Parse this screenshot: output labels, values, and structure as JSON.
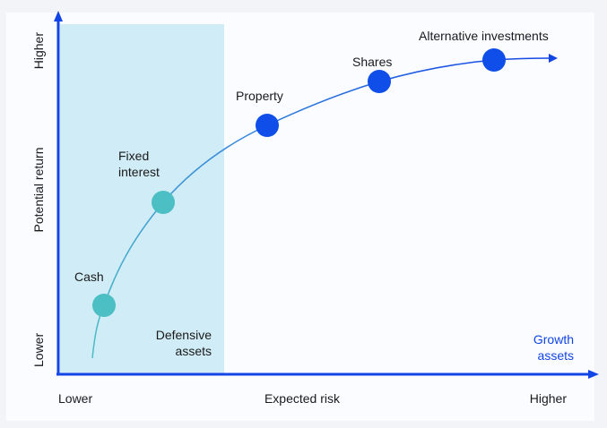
{
  "y_axis": {
    "label": "Potential return",
    "low": "Lower",
    "high": "Higher"
  },
  "x_axis": {
    "label": "Expected risk",
    "low": "Lower",
    "high": "Higher"
  },
  "regions": {
    "defensive": {
      "line1": "Defensive",
      "line2": "assets"
    },
    "growth": {
      "line1": "Growth",
      "line2": "assets"
    }
  },
  "assets": [
    {
      "name": "Cash",
      "group": "defensive"
    },
    {
      "name_line1": "Fixed",
      "name_line2": "interest",
      "group": "defensive"
    },
    {
      "name": "Property",
      "group": "growth"
    },
    {
      "name": "Shares",
      "group": "growth"
    },
    {
      "name": "Alternative investments",
      "group": "growth"
    }
  ],
  "colors": {
    "axis": "#1245e6",
    "defensive_fill": "#d0ecf6",
    "defensive_point": "#4bbfc3",
    "growth_point": "#0f4ee8",
    "growth_label": "#1245e6"
  }
}
